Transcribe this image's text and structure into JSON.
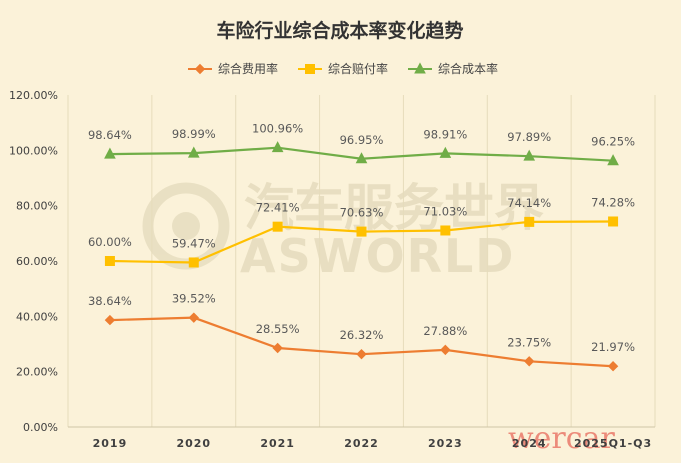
{
  "chart_data": {
    "type": "line",
    "title": "车险行业综合成本率变化趋势",
    "categories": [
      "2019",
      "2020",
      "2021",
      "2022",
      "2023",
      "2024",
      "2025Q1-Q3"
    ],
    "series": [
      {
        "name": "综合费用率",
        "color": "#ed7d31",
        "marker": "diamond",
        "values": [
          38.64,
          39.52,
          28.55,
          26.32,
          27.88,
          23.75,
          21.97
        ],
        "labels": [
          "38.64%",
          "39.52%",
          "28.55%",
          "26.32%",
          "27.88%",
          "23.75%",
          "21.97%"
        ]
      },
      {
        "name": "综合赔付率",
        "color": "#ffc000",
        "marker": "square",
        "values": [
          60.0,
          59.47,
          72.41,
          70.63,
          71.03,
          74.14,
          74.28
        ],
        "labels": [
          "60.00%",
          "59.47%",
          "72.41%",
          "70.63%",
          "71.03%",
          "74.14%",
          "74.28%"
        ]
      },
      {
        "name": "综合成本率",
        "color": "#70ad47",
        "marker": "triangle",
        "values": [
          98.64,
          98.99,
          100.96,
          96.95,
          98.91,
          97.89,
          96.25
        ],
        "labels": [
          "98.64%",
          "98.99%",
          "100.96%",
          "96.95%",
          "98.91%",
          "97.89%",
          "96.25%"
        ]
      }
    ],
    "ylim": [
      0,
      120
    ],
    "yticks": [
      "0.00%",
      "20.00%",
      "40.00%",
      "60.00%",
      "80.00%",
      "100.00%",
      "120.00%"
    ],
    "grid": "vertical",
    "legend_position": "top"
  },
  "watermark": {
    "cn": "汽车服务世界",
    "en": "ASWORLD",
    "corner": "wercar"
  }
}
